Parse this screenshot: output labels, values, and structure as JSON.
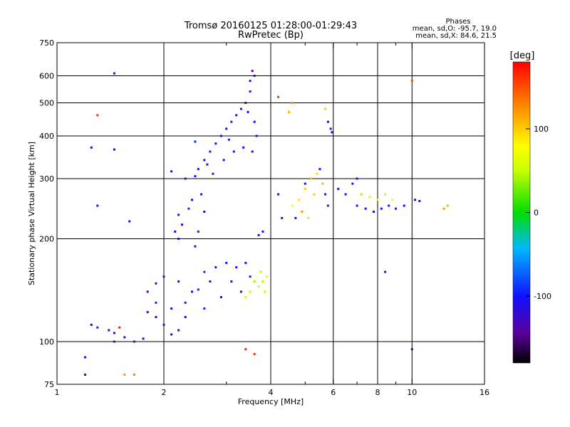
{
  "chart_data": {
    "type": "scatter",
    "title": "Tromsø 20160125 01:28:00-01:29:43",
    "subtitle": "RwPretec (Bp)",
    "xlabel": "Frequency [MHz]",
    "ylabel": "Stationary phase Virtual Height [km]",
    "x_scale": "log",
    "y_scale": "log",
    "xlim": [
      1,
      16
    ],
    "ylim": [
      75,
      750
    ],
    "x_ticks": [
      1,
      2,
      4,
      6,
      8,
      10,
      16
    ],
    "x_minor_ticks": [
      3,
      5,
      7,
      9
    ],
    "y_ticks": [
      75,
      100,
      200,
      300,
      400,
      500,
      600,
      750
    ],
    "grid": true,
    "stats": {
      "heading": "Phases",
      "line1": "mean, sd,O: -95.7, 19.0",
      "line2": "mean, sd,X:  84.6, 21.5"
    },
    "colorbar": {
      "label": "[deg]",
      "range": [
        -180,
        180
      ],
      "ticks": [
        100,
        0,
        -100
      ],
      "tick_labels": [
        "100",
        "0",
        "-100"
      ]
    },
    "series": [
      {
        "points": [
          [
            2.1,
            105,
            -100
          ],
          [
            2.2,
            108,
            -105
          ],
          [
            2.0,
            112,
            -95
          ],
          [
            1.9,
            118,
            -110
          ],
          [
            1.8,
            122,
            -100
          ],
          [
            1.75,
            102,
            -115
          ],
          [
            1.65,
            100,
            -98
          ],
          [
            1.55,
            103,
            -120
          ],
          [
            1.45,
            106,
            -100
          ],
          [
            1.4,
            108,
            -110
          ],
          [
            1.3,
            110,
            -95
          ],
          [
            1.25,
            112,
            -105
          ],
          [
            2.3,
            130,
            -95
          ],
          [
            2.4,
            140,
            -100
          ],
          [
            2.2,
            150,
            -110
          ],
          [
            2.0,
            155,
            -100
          ],
          [
            1.9,
            148,
            -95
          ],
          [
            2.6,
            160,
            -90
          ],
          [
            2.8,
            165,
            -105
          ],
          [
            3.0,
            170,
            -100
          ],
          [
            3.2,
            165,
            -110
          ],
          [
            2.7,
            150,
            -120
          ],
          [
            2.5,
            142,
            -95
          ],
          [
            3.1,
            150,
            -130
          ],
          [
            3.3,
            140,
            -140
          ],
          [
            3.5,
            155,
            -135
          ],
          [
            3.4,
            170,
            -100
          ],
          [
            2.9,
            135,
            -105
          ],
          [
            2.6,
            125,
            -95
          ],
          [
            2.3,
            118,
            -110
          ],
          [
            2.1,
            125,
            -100
          ],
          [
            1.9,
            130,
            -95
          ],
          [
            1.8,
            140,
            -110
          ],
          [
            2.2,
            200,
            -100
          ],
          [
            2.25,
            220,
            -105
          ],
          [
            2.35,
            245,
            -95
          ],
          [
            2.4,
            260,
            -110
          ],
          [
            2.55,
            270,
            -100
          ],
          [
            2.6,
            240,
            -105
          ],
          [
            2.5,
            210,
            -95
          ],
          [
            2.45,
            190,
            -100
          ],
          [
            2.15,
            210,
            -110
          ],
          [
            2.2,
            235,
            -100
          ],
          [
            2.5,
            320,
            -100
          ],
          [
            2.6,
            340,
            -105
          ],
          [
            2.7,
            360,
            -95
          ],
          [
            2.8,
            380,
            -110
          ],
          [
            2.9,
            400,
            -100
          ],
          [
            3.0,
            420,
            -105
          ],
          [
            3.1,
            440,
            -95
          ],
          [
            3.2,
            460,
            -110
          ],
          [
            3.3,
            480,
            -100
          ],
          [
            3.4,
            500,
            -105
          ],
          [
            3.5,
            540,
            -95
          ],
          [
            3.6,
            600,
            -100
          ],
          [
            3.55,
            620,
            -140
          ],
          [
            3.5,
            580,
            -130
          ],
          [
            3.45,
            470,
            -120
          ],
          [
            3.6,
            440,
            -100
          ],
          [
            3.65,
            400,
            -110
          ],
          [
            3.55,
            360,
            -105
          ],
          [
            2.65,
            330,
            -100
          ],
          [
            2.75,
            310,
            -95
          ],
          [
            2.95,
            340,
            -110
          ],
          [
            3.15,
            360,
            -100
          ],
          [
            3.35,
            370,
            -105
          ],
          [
            3.05,
            390,
            -95
          ],
          [
            2.45,
            305,
            -100
          ],
          [
            2.3,
            300,
            -110
          ],
          [
            3.6,
            150,
            40
          ],
          [
            3.7,
            145,
            50
          ],
          [
            3.8,
            150,
            45
          ],
          [
            3.9,
            155,
            60
          ],
          [
            3.5,
            140,
            50
          ],
          [
            3.4,
            135,
            55
          ],
          [
            3.75,
            160,
            45
          ],
          [
            3.85,
            140,
            50
          ],
          [
            4.6,
            250,
            80
          ],
          [
            4.8,
            260,
            90
          ],
          [
            5.0,
            280,
            100
          ],
          [
            5.2,
            300,
            110
          ],
          [
            5.4,
            310,
            95
          ],
          [
            5.6,
            290,
            105
          ],
          [
            4.9,
            240,
            120
          ],
          [
            5.1,
            230,
            90
          ],
          [
            5.3,
            270,
            100
          ],
          [
            4.7,
            230,
            -100
          ],
          [
            5.0,
            290,
            -110
          ],
          [
            5.5,
            320,
            -105
          ],
          [
            5.7,
            270,
            -100
          ],
          [
            5.8,
            250,
            -95
          ],
          [
            4.3,
            230,
            -120
          ],
          [
            4.2,
            270,
            -100
          ],
          [
            5.9,
            420,
            -100
          ],
          [
            5.8,
            440,
            -110
          ],
          [
            5.95,
            410,
            -105
          ],
          [
            6.5,
            270,
            -100
          ],
          [
            7.0,
            250,
            -110
          ],
          [
            7.4,
            245,
            -105
          ],
          [
            7.8,
            240,
            -100
          ],
          [
            8.2,
            245,
            -120
          ],
          [
            8.6,
            250,
            -130
          ],
          [
            9.0,
            245,
            -110
          ],
          [
            9.5,
            250,
            -100
          ],
          [
            10.2,
            260,
            -105
          ],
          [
            10.5,
            258,
            -100
          ],
          [
            7.2,
            270,
            100
          ],
          [
            7.6,
            265,
            90
          ],
          [
            8.0,
            260,
            70
          ],
          [
            8.4,
            270,
            50
          ],
          [
            8.8,
            260,
            80
          ],
          [
            6.8,
            290,
            -100
          ],
          [
            6.2,
            280,
            -105
          ],
          [
            7.0,
            300,
            -100
          ],
          [
            12.3,
            245,
            120
          ],
          [
            12.6,
            250,
            110
          ],
          [
            10.0,
            580,
            150
          ],
          [
            1.3,
            460,
            160
          ],
          [
            1.5,
            110,
            170
          ],
          [
            1.45,
            100,
            -120
          ],
          [
            1.2,
            90,
            -110
          ],
          [
            1.2,
            80,
            -130
          ],
          [
            1.55,
            80,
            120
          ],
          [
            1.65,
            80,
            130
          ],
          [
            3.4,
            95,
            170
          ],
          [
            3.6,
            92,
            160
          ],
          [
            10.0,
            95,
            -150
          ],
          [
            1.45,
            610,
            -110
          ],
          [
            1.45,
            365,
            -100
          ],
          [
            1.6,
            225,
            -120
          ],
          [
            4.5,
            470,
            110
          ],
          [
            4.6,
            500,
            120
          ],
          [
            5.7,
            480,
            100
          ],
          [
            4.2,
            520,
            160
          ],
          [
            2.1,
            315,
            -100
          ],
          [
            2.45,
            385,
            -95
          ],
          [
            3.8,
            210,
            -110
          ],
          [
            3.7,
            205,
            -100
          ],
          [
            8.4,
            160,
            -110
          ],
          [
            1.25,
            370,
            -100
          ],
          [
            1.3,
            250,
            -105
          ]
        ]
      }
    ]
  }
}
